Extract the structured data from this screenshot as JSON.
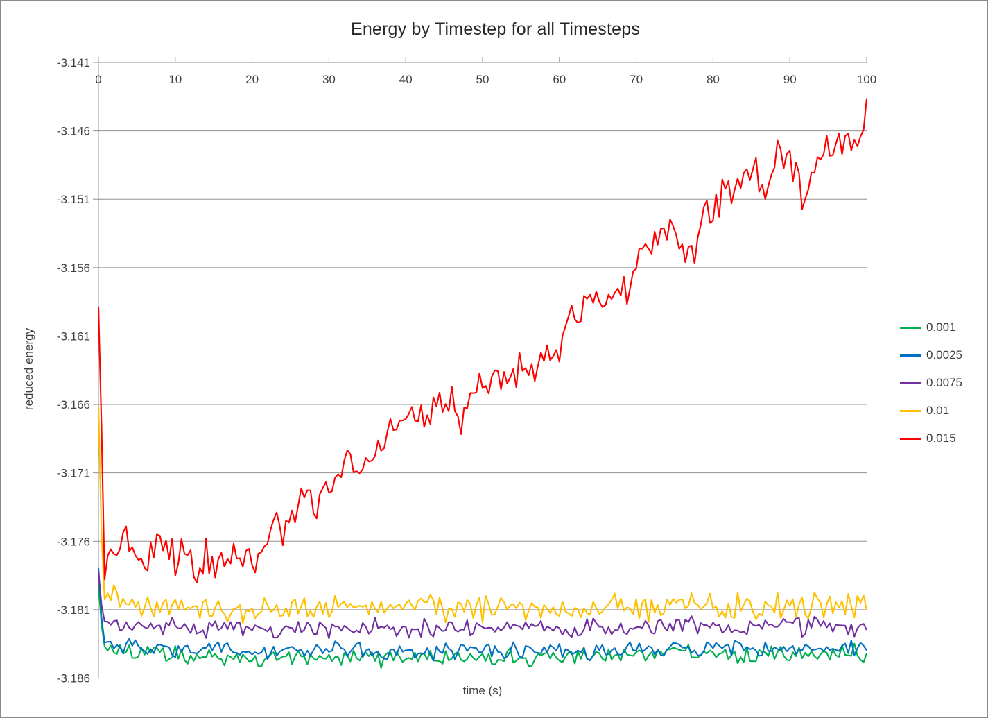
{
  "window": {
    "background": "#FFFFFF",
    "frame_border_color": "#8A8A8A"
  },
  "chart_data": {
    "type": "line",
    "title": "Energy by Timestep for all Timesteps",
    "xlabel": "time (s)",
    "ylabel": "reduced energy",
    "xlim": [
      0,
      100
    ],
    "ylim": [
      -3.186,
      -3.141
    ],
    "x_ticks": [
      0,
      10,
      20,
      30,
      40,
      50,
      60,
      70,
      80,
      90,
      100
    ],
    "x_tick_labels": [
      "0",
      "10",
      "20",
      "30",
      "40",
      "50",
      "60",
      "70",
      "80",
      "90",
      "100"
    ],
    "y_ticks": [
      -3.141,
      -3.146,
      -3.151,
      -3.156,
      -3.161,
      -3.166,
      -3.171,
      -3.176,
      -3.181,
      -3.186
    ],
    "y_tick_labels": [
      "-3.141",
      "-3.146",
      "-3.151",
      "-3.156",
      "-3.161",
      "-3.166",
      "-3.171",
      "-3.176",
      "-3.181",
      "-3.186"
    ],
    "grid": "horizontal-major",
    "x_axis_position": "top",
    "legend_position": "right-middle",
    "colors": {
      "axis": "#909090",
      "grid": "#909090",
      "tick_text": "#3F3F3F",
      "title_text": "#262626"
    },
    "sample_step": 0.4,
    "series": [
      {
        "name": "0.001",
        "color": "#00B050",
        "noise": 0.00055,
        "seed": 101,
        "trend": [
          [
            0,
            -3.179
          ],
          [
            0.6,
            -3.1836
          ],
          [
            2,
            -3.1838
          ],
          [
            5,
            -3.1841
          ],
          [
            10,
            -3.1843
          ],
          [
            15,
            -3.1845
          ],
          [
            20,
            -3.1845
          ],
          [
            30,
            -3.1844
          ],
          [
            40,
            -3.1845
          ],
          [
            50,
            -3.1846
          ],
          [
            51.4,
            -3.185
          ],
          [
            52,
            -3.1845
          ],
          [
            60,
            -3.1844
          ],
          [
            70,
            -3.1843
          ],
          [
            80,
            -3.1842
          ],
          [
            90,
            -3.1843
          ],
          [
            100,
            -3.1842
          ]
        ]
      },
      {
        "name": "0.0025",
        "color": "#0070C0",
        "noise": 0.0005,
        "seed": 202,
        "trend": [
          [
            0,
            -3.1778
          ],
          [
            0.6,
            -3.1834
          ],
          [
            5,
            -3.1837
          ],
          [
            10,
            -3.1838
          ],
          [
            20,
            -3.184
          ],
          [
            40,
            -3.184
          ],
          [
            60,
            -3.184
          ],
          [
            80,
            -3.1839
          ],
          [
            100,
            -3.1838
          ]
        ]
      },
      {
        "name": "0.0075",
        "color": "#7030A0",
        "noise": 0.00055,
        "seed": 303,
        "trend": [
          [
            0,
            -3.1782
          ],
          [
            0.6,
            -3.1818
          ],
          [
            5,
            -3.1821
          ],
          [
            10,
            -3.1823
          ],
          [
            30,
            -3.1824
          ],
          [
            50,
            -3.1823
          ],
          [
            70,
            -3.1823
          ],
          [
            100,
            -3.1822
          ]
        ]
      },
      {
        "name": "0.01",
        "color": "#FFC000",
        "noise": 0.0008,
        "seed": 404,
        "trend": [
          [
            0,
            -3.166
          ],
          [
            0.6,
            -3.1802
          ],
          [
            5,
            -3.1806
          ],
          [
            10,
            -3.1809
          ],
          [
            30,
            -3.1809
          ],
          [
            50,
            -3.1808
          ],
          [
            70,
            -3.1808
          ],
          [
            100,
            -3.1808
          ]
        ]
      },
      {
        "name": "0.015",
        "color": "#FF0000",
        "noise": 0.0011,
        "seed": 505,
        "trend": [
          [
            0,
            -3.1585
          ],
          [
            0.5,
            -3.17
          ],
          [
            0.8,
            -3.179
          ],
          [
            1.5,
            -3.176
          ],
          [
            2.5,
            -3.1768
          ],
          [
            4,
            -3.1758
          ],
          [
            5,
            -3.1772
          ],
          [
            6,
            -3.1768
          ],
          [
            7,
            -3.1778
          ],
          [
            8,
            -3.1762
          ],
          [
            9,
            -3.1768
          ],
          [
            10,
            -3.177
          ],
          [
            11,
            -3.1763
          ],
          [
            12,
            -3.1775
          ],
          [
            13,
            -3.178
          ],
          [
            14,
            -3.177
          ],
          [
            15,
            -3.1772
          ],
          [
            16,
            -3.1778
          ],
          [
            17,
            -3.1768
          ],
          [
            18,
            -3.1773
          ],
          [
            19,
            -3.177
          ],
          [
            20,
            -3.1772
          ],
          [
            21,
            -3.177
          ],
          [
            22,
            -3.1762
          ],
          [
            23,
            -3.1745
          ],
          [
            24,
            -3.175
          ],
          [
            25,
            -3.174
          ],
          [
            26,
            -3.1735
          ],
          [
            27,
            -3.173
          ],
          [
            28,
            -3.1728
          ],
          [
            29,
            -3.1732
          ],
          [
            30,
            -3.1722
          ],
          [
            31,
            -3.1718
          ],
          [
            32,
            -3.1712
          ],
          [
            33,
            -3.17
          ],
          [
            34,
            -3.171
          ],
          [
            35,
            -3.1705
          ],
          [
            36,
            -3.169
          ],
          [
            37,
            -3.1683
          ],
          [
            38,
            -3.168
          ],
          [
            39,
            -3.1678
          ],
          [
            40,
            -3.1675
          ],
          [
            41,
            -3.167
          ],
          [
            42,
            -3.1668
          ],
          [
            43,
            -3.166
          ],
          [
            44,
            -3.1664
          ],
          [
            45,
            -3.1656
          ],
          [
            46,
            -3.1655
          ],
          [
            47,
            -3.1675
          ],
          [
            48,
            -3.1662
          ],
          [
            49,
            -3.1655
          ],
          [
            50,
            -3.1652
          ],
          [
            51,
            -3.1648
          ],
          [
            52,
            -3.1642
          ],
          [
            53,
            -3.164
          ],
          [
            54,
            -3.1638
          ],
          [
            55,
            -3.1632
          ],
          [
            56,
            -3.163
          ],
          [
            57,
            -3.1628
          ],
          [
            58,
            -3.1628
          ],
          [
            59,
            -3.1625
          ],
          [
            60,
            -3.1615
          ],
          [
            61,
            -3.1605
          ],
          [
            62,
            -3.1598
          ],
          [
            63,
            -3.1593
          ],
          [
            64,
            -3.1588
          ],
          [
            65,
            -3.1578
          ],
          [
            66,
            -3.1585
          ],
          [
            67,
            -3.158
          ],
          [
            68,
            -3.1575
          ],
          [
            69,
            -3.1582
          ],
          [
            70,
            -3.1552
          ],
          [
            71,
            -3.1545
          ],
          [
            72,
            -3.1538
          ],
          [
            73,
            -3.1535
          ],
          [
            74,
            -3.153
          ],
          [
            75,
            -3.1528
          ],
          [
            76,
            -3.1542
          ],
          [
            77,
            -3.156
          ],
          [
            78,
            -3.1542
          ],
          [
            79,
            -3.1522
          ],
          [
            80,
            -3.1518
          ],
          [
            81,
            -3.1508
          ],
          [
            82,
            -3.1502
          ],
          [
            83,
            -3.15
          ],
          [
            84,
            -3.1496
          ],
          [
            85,
            -3.149
          ],
          [
            85.4,
            -3.147
          ],
          [
            86,
            -3.15
          ],
          [
            87,
            -3.1497
          ],
          [
            88,
            -3.148
          ],
          [
            88.5,
            -3.1468
          ],
          [
            89,
            -3.1476
          ],
          [
            90,
            -3.1482
          ],
          [
            91,
            -3.1495
          ],
          [
            92,
            -3.1515
          ],
          [
            93,
            -3.149
          ],
          [
            94,
            -3.1478
          ],
          [
            95,
            -3.1474
          ],
          [
            96,
            -3.1478
          ],
          [
            97,
            -3.1468
          ],
          [
            98,
            -3.1465
          ],
          [
            99,
            -3.1468
          ],
          [
            99.6,
            -3.1452
          ],
          [
            100,
            -3.1428
          ]
        ]
      }
    ]
  }
}
